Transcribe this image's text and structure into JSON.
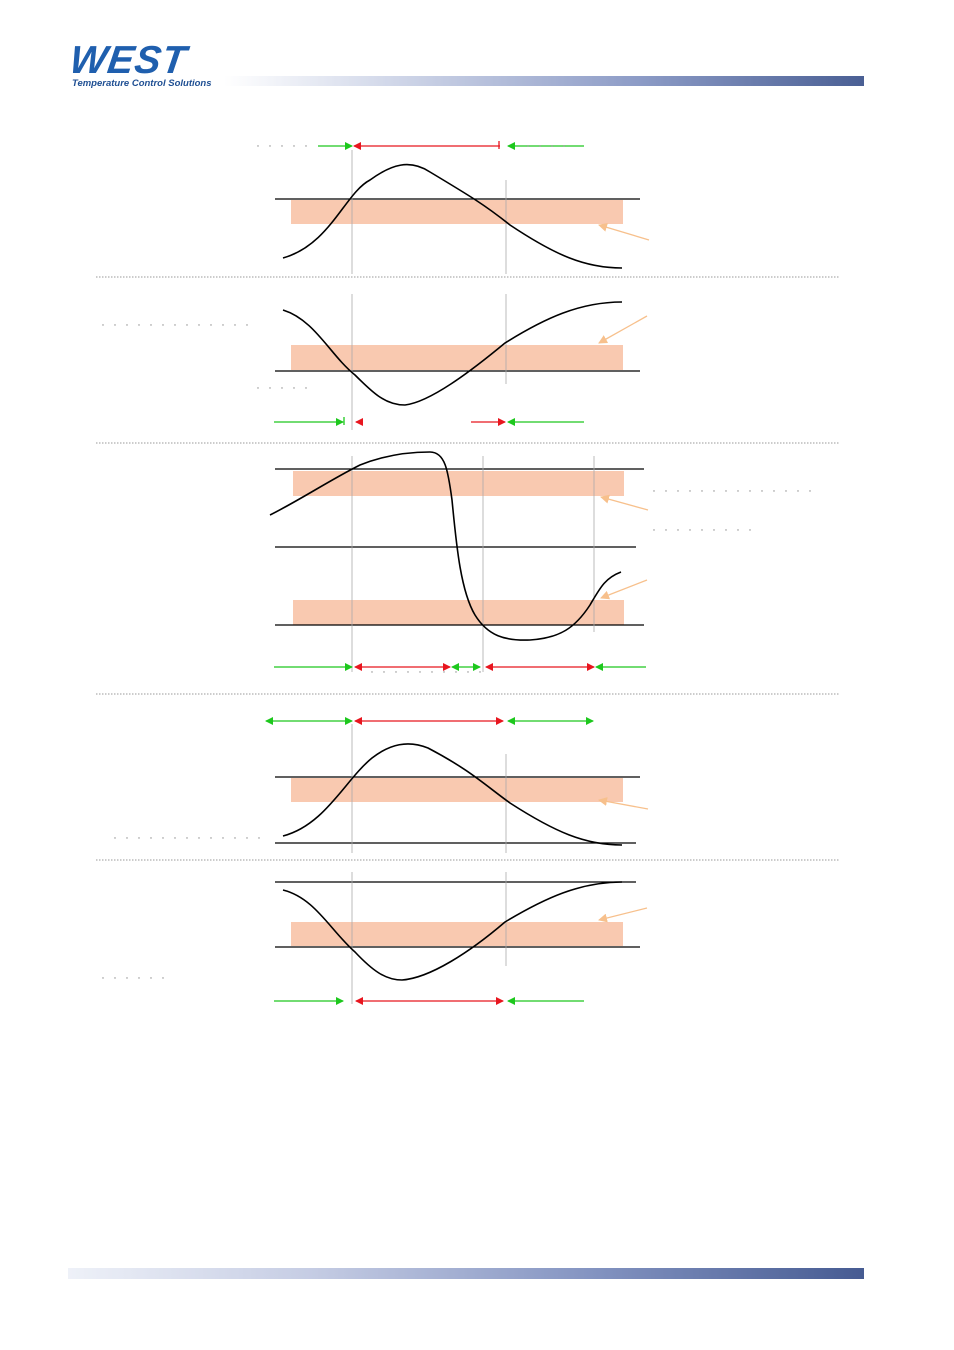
{
  "header": {
    "logo_text": "WEST",
    "tagline": "Temperature Control Solutions"
  },
  "colors": {
    "alarm_on": "#e8161f",
    "alarm_off": "#1dc81d",
    "hysteresis_band": "#f9c9b0",
    "annotation_arrow": "#f7c08c",
    "curve": "#000000"
  },
  "panels": [
    {
      "id": "panel-1",
      "curve": "single-peak-rising"
    },
    {
      "id": "panel-2",
      "curve": "single-trough-falling"
    },
    {
      "id": "panel-3",
      "curve": "rise-then-fall"
    },
    {
      "id": "panel-4",
      "curve": "single-peak-rising"
    },
    {
      "id": "panel-5",
      "curve": "single-trough-falling"
    }
  ]
}
